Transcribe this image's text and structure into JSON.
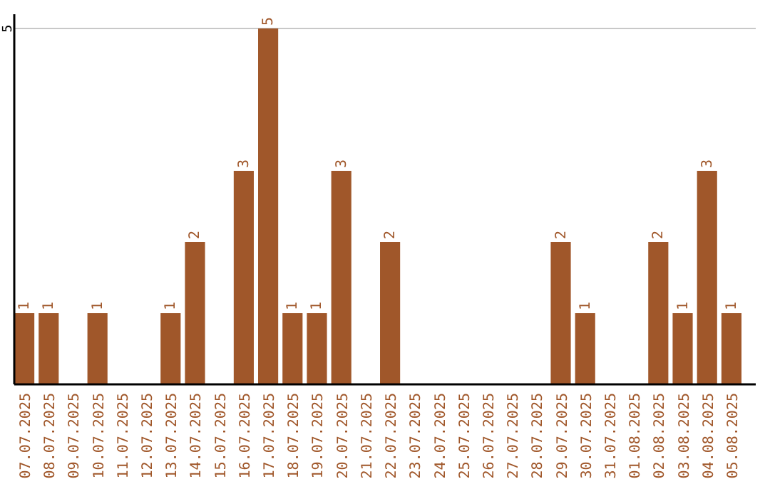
{
  "chart_data": {
    "type": "bar",
    "categories": [
      "07.07.2025",
      "08.07.2025",
      "09.07.2025",
      "10.07.2025",
      "11.07.2025",
      "12.07.2025",
      "13.07.2025",
      "14.07.2025",
      "15.07.2025",
      "16.07.2025",
      "17.07.2025",
      "18.07.2025",
      "19.07.2025",
      "20.07.2025",
      "21.07.2025",
      "22.07.2025",
      "23.07.2025",
      "24.07.2025",
      "25.07.2025",
      "26.07.2025",
      "27.07.2025",
      "28.07.2025",
      "29.07.2025",
      "30.07.2025",
      "31.07.2025",
      "01.08.2025",
      "02.08.2025",
      "03.08.2025",
      "04.08.2025",
      "05.08.2025"
    ],
    "values": [
      1,
      1,
      0,
      1,
      0,
      0,
      1,
      2,
      0,
      3,
      5,
      1,
      1,
      3,
      0,
      2,
      0,
      0,
      0,
      0,
      0,
      0,
      2,
      1,
      0,
      0,
      2,
      1,
      3,
      1
    ],
    "value_labels": [
      "1",
      "1",
      null,
      "1",
      null,
      null,
      "1",
      "2",
      null,
      "3",
      "5",
      "1",
      "1",
      "3",
      null,
      "2",
      null,
      null,
      null,
      null,
      null,
      null,
      "2",
      "1",
      null,
      null,
      "2",
      "1",
      "3",
      "1"
    ],
    "color": "#a0572a",
    "ylim": [
      0,
      5.2
    ],
    "yticks": [
      5
    ],
    "grid": "y"
  }
}
